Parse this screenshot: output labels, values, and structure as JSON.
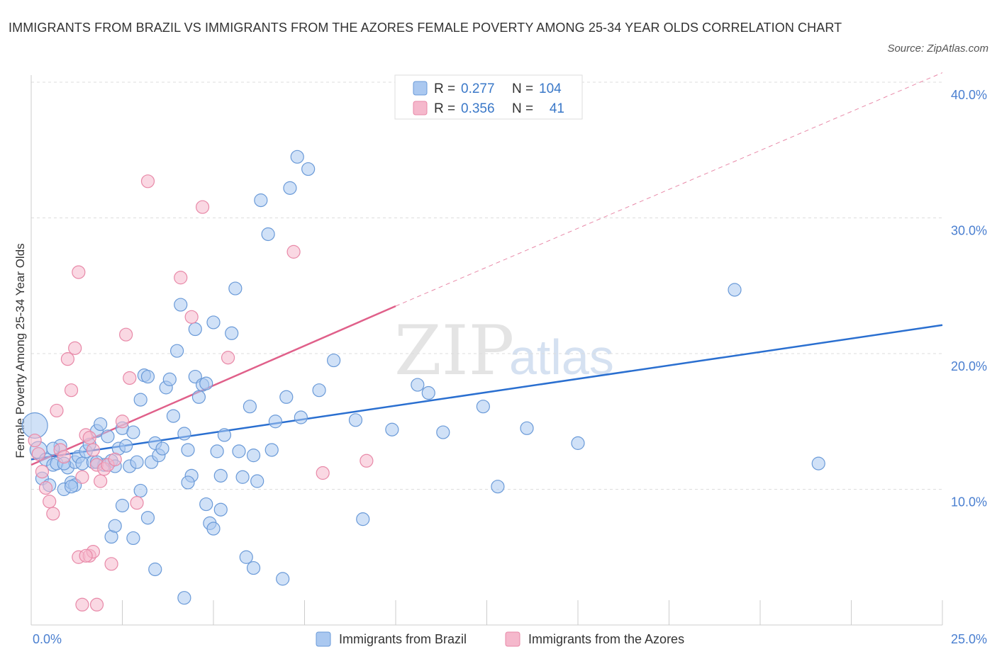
{
  "title": "IMMIGRANTS FROM BRAZIL VS IMMIGRANTS FROM THE AZORES FEMALE POVERTY AMONG 25-34 YEAR OLDS CORRELATION CHART",
  "source": "Source: ZipAtlas.com",
  "watermark": {
    "zip": "ZIP",
    "atlas": "atlas"
  },
  "colors": {
    "brazil": "#aac8f0",
    "brazil_stroke": "#6a9ad8",
    "brazil_line": "#2a6fd0",
    "azores": "#f5b8cc",
    "azores_stroke": "#e889a8",
    "azores_line": "#e0608a"
  },
  "legend": {
    "rows": [
      {
        "r_label": "R =",
        "r_value": "0.277",
        "n_label": "N =",
        "n_value": "104"
      },
      {
        "r_label": "R =",
        "r_value": "0.356",
        "n_label": "N =",
        "n_value": "41"
      }
    ]
  },
  "bottom_legend": [
    "Immigrants from Brazil",
    "Immigrants from the Azores"
  ],
  "chart_data": {
    "type": "scatter",
    "ylabel": "Female Poverty Among 25-34 Year Olds",
    "xlabel": "",
    "xlim": [
      0,
      25
    ],
    "ylim": [
      0,
      40
    ],
    "x_tick_labels": [
      "0.0%",
      "25.0%"
    ],
    "y_ticks": [
      10,
      20,
      30,
      40
    ],
    "y_tick_labels": [
      "10.0%",
      "20.0%",
      "30.0%",
      "40.0%"
    ],
    "grid": true,
    "series": [
      {
        "name": "Immigrants from Brazil",
        "trend": {
          "x": [
            0,
            25
          ],
          "y": [
            12.2,
            22.1
          ]
        },
        "points": [
          [
            0.1,
            14.7
          ],
          [
            0.2,
            12.9
          ],
          [
            0.3,
            10.8
          ],
          [
            0.4,
            12.2
          ],
          [
            0.5,
            10.3
          ],
          [
            0.6,
            11.8
          ],
          [
            0.7,
            11.9
          ],
          [
            0.8,
            13.2
          ],
          [
            0.9,
            10.0
          ],
          [
            1.0,
            11.6
          ],
          [
            1.1,
            10.5
          ],
          [
            1.2,
            12.0
          ],
          [
            1.3,
            12.4
          ],
          [
            1.4,
            11.9
          ],
          [
            1.5,
            12.8
          ],
          [
            1.6,
            13.3
          ],
          [
            1.7,
            12.0
          ],
          [
            1.8,
            14.3
          ],
          [
            1.9,
            14.8
          ],
          [
            2.0,
            11.8
          ],
          [
            2.1,
            13.9
          ],
          [
            2.2,
            12.1
          ],
          [
            2.3,
            11.7
          ],
          [
            2.4,
            13.0
          ],
          [
            2.5,
            14.5
          ],
          [
            2.6,
            13.2
          ],
          [
            2.7,
            11.7
          ],
          [
            2.8,
            14.2
          ],
          [
            2.9,
            12.0
          ],
          [
            3.0,
            16.6
          ],
          [
            3.1,
            18.4
          ],
          [
            3.2,
            18.3
          ],
          [
            3.3,
            12.0
          ],
          [
            3.4,
            13.4
          ],
          [
            3.5,
            12.5
          ],
          [
            3.6,
            13.0
          ],
          [
            3.7,
            17.5
          ],
          [
            3.8,
            18.1
          ],
          [
            3.9,
            15.4
          ],
          [
            4.0,
            20.2
          ],
          [
            4.1,
            23.6
          ],
          [
            4.2,
            14.1
          ],
          [
            4.3,
            12.9
          ],
          [
            4.4,
            11.0
          ],
          [
            4.5,
            18.3
          ],
          [
            4.6,
            16.8
          ],
          [
            4.7,
            17.7
          ],
          [
            4.8,
            17.8
          ],
          [
            5.0,
            22.3
          ],
          [
            5.1,
            12.8
          ],
          [
            5.2,
            11.0
          ],
          [
            5.3,
            14.0
          ],
          [
            5.5,
            21.5
          ],
          [
            5.6,
            24.8
          ],
          [
            5.7,
            12.8
          ],
          [
            5.8,
            10.9
          ],
          [
            6.0,
            16.1
          ],
          [
            6.1,
            12.5
          ],
          [
            6.2,
            10.6
          ],
          [
            6.3,
            31.3
          ],
          [
            6.5,
            28.8
          ],
          [
            6.6,
            12.9
          ],
          [
            6.7,
            15.0
          ],
          [
            7.0,
            16.8
          ],
          [
            7.1,
            32.2
          ],
          [
            7.3,
            34.5
          ],
          [
            7.4,
            15.3
          ],
          [
            7.6,
            33.6
          ],
          [
            7.9,
            17.3
          ],
          [
            8.3,
            19.5
          ],
          [
            8.9,
            15.1
          ],
          [
            9.1,
            7.8
          ],
          [
            9.9,
            14.4
          ],
          [
            10.6,
            17.7
          ],
          [
            10.9,
            17.1
          ],
          [
            11.3,
            14.2
          ],
          [
            12.4,
            16.1
          ],
          [
            12.8,
            10.2
          ],
          [
            13.6,
            14.5
          ],
          [
            15.0,
            13.4
          ],
          [
            19.3,
            24.7
          ],
          [
            21.6,
            11.9
          ],
          [
            0.6,
            13.0
          ],
          [
            0.9,
            11.9
          ],
          [
            1.2,
            10.3
          ],
          [
            1.8,
            12.0
          ],
          [
            2.2,
            6.5
          ],
          [
            2.3,
            7.3
          ],
          [
            2.5,
            8.8
          ],
          [
            2.8,
            6.4
          ],
          [
            3.0,
            9.9
          ],
          [
            3.2,
            7.9
          ],
          [
            3.4,
            4.1
          ],
          [
            4.2,
            2.0
          ],
          [
            4.8,
            8.9
          ],
          [
            4.9,
            7.5
          ],
          [
            5.0,
            7.1
          ],
          [
            5.2,
            8.5
          ],
          [
            5.9,
            5.0
          ],
          [
            6.1,
            4.2
          ],
          [
            6.9,
            3.4
          ],
          [
            1.1,
            10.2
          ],
          [
            4.5,
            21.8
          ],
          [
            4.3,
            10.5
          ]
        ]
      },
      {
        "name": "Immigrants from the Azores",
        "trend": {
          "x": [
            0,
            10
          ],
          "y": [
            11.8,
            23.5
          ]
        },
        "trend_extension": {
          "x": [
            10,
            25
          ],
          "y": [
            23.5,
            40.7
          ]
        },
        "points": [
          [
            0.1,
            13.6
          ],
          [
            0.2,
            12.6
          ],
          [
            0.3,
            11.3
          ],
          [
            0.4,
            10.1
          ],
          [
            0.5,
            9.1
          ],
          [
            0.6,
            8.2
          ],
          [
            0.7,
            15.8
          ],
          [
            0.8,
            12.9
          ],
          [
            0.9,
            12.4
          ],
          [
            1.0,
            19.6
          ],
          [
            1.1,
            17.3
          ],
          [
            1.2,
            20.4
          ],
          [
            1.3,
            26.0
          ],
          [
            1.4,
            10.9
          ],
          [
            1.5,
            14.0
          ],
          [
            1.6,
            13.8
          ],
          [
            1.7,
            12.9
          ],
          [
            1.8,
            11.8
          ],
          [
            1.9,
            10.6
          ],
          [
            2.0,
            11.5
          ],
          [
            2.1,
            11.8
          ],
          [
            2.3,
            12.2
          ],
          [
            2.5,
            15.0
          ],
          [
            2.6,
            21.4
          ],
          [
            2.7,
            18.2
          ],
          [
            2.9,
            9.0
          ],
          [
            3.2,
            32.7
          ],
          [
            4.1,
            25.6
          ],
          [
            4.4,
            22.7
          ],
          [
            4.7,
            30.8
          ],
          [
            5.4,
            19.7
          ],
          [
            7.2,
            27.5
          ],
          [
            8.0,
            11.2
          ],
          [
            9.2,
            12.1
          ],
          [
            1.3,
            5.0
          ],
          [
            1.6,
            5.1
          ],
          [
            1.7,
            5.4
          ],
          [
            1.8,
            1.5
          ],
          [
            2.2,
            4.5
          ],
          [
            1.4,
            1.5
          ],
          [
            1.5,
            5.1
          ]
        ]
      }
    ]
  }
}
